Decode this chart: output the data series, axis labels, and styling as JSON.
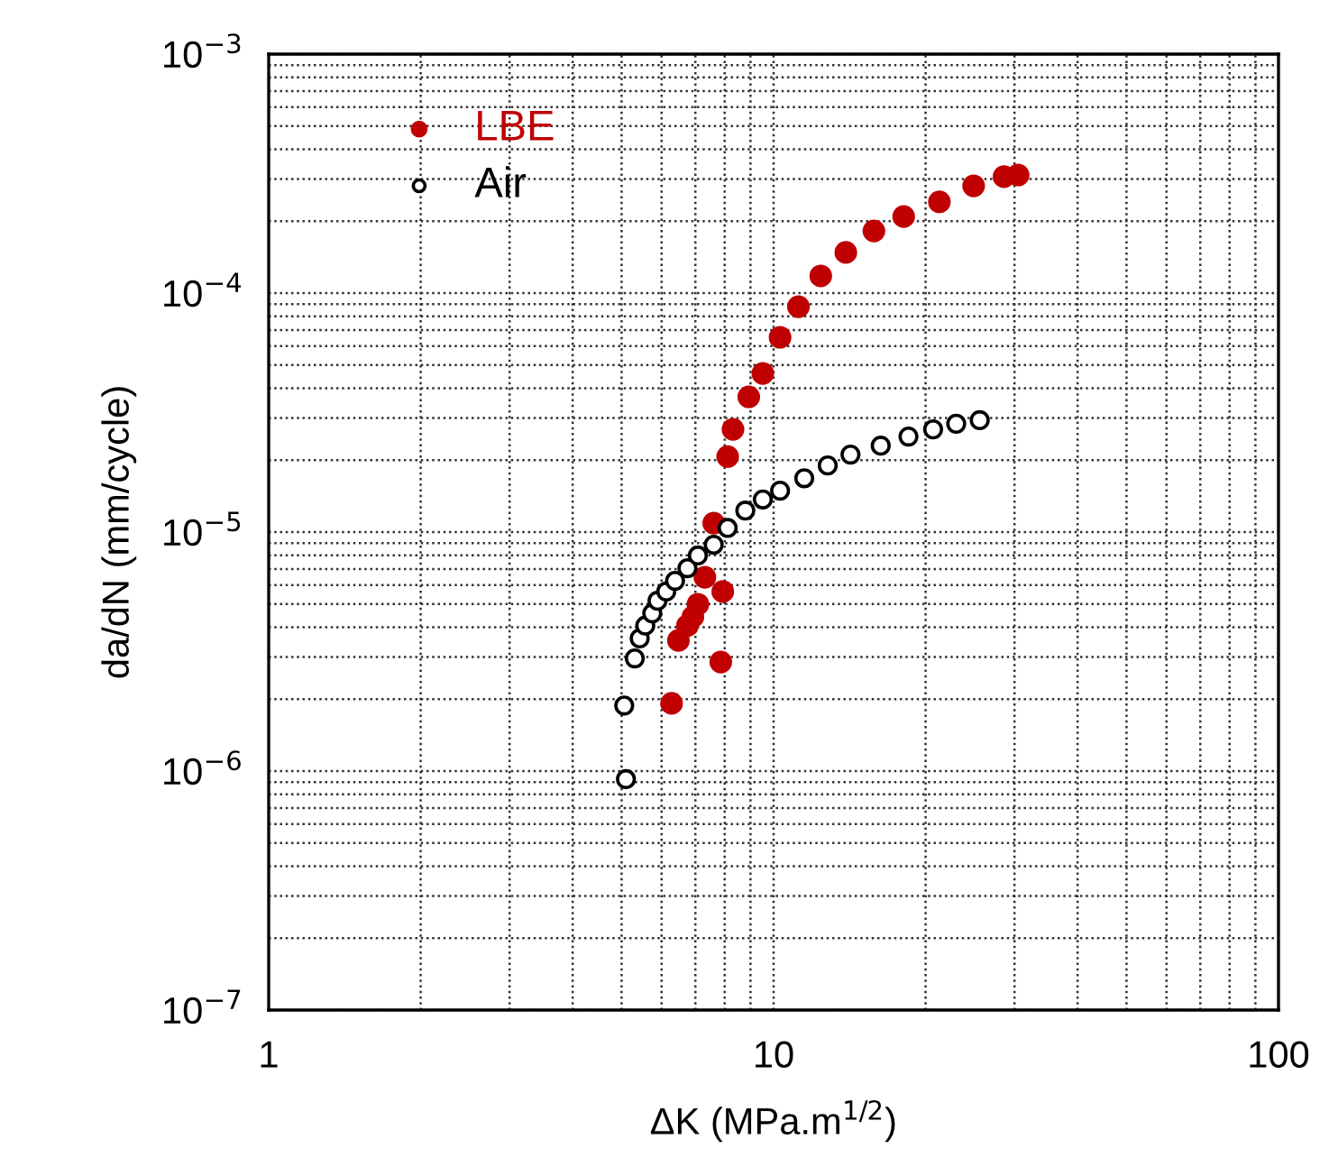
{
  "chart_data": {
    "type": "scatter",
    "xlabel": "ΔK (MPa.m$^{1/2}$)",
    "ylabel": "da/dN (mm/cycle)",
    "log": "xy",
    "xlim": [
      1,
      100
    ],
    "xticks": [
      1,
      10,
      100
    ],
    "ylim": [
      1e-07,
      0.001
    ],
    "yticks": [
      {
        "value": 1e-07,
        "label": "10$^{−7}$"
      },
      {
        "value": 1e-06,
        "label": "10$^{−6}$"
      },
      {
        "value": 1e-05,
        "label": "10$^{−5}$"
      },
      {
        "value": 0.0001,
        "label": "10$^{−4}$"
      },
      {
        "value": 0.001,
        "label": "10$^{−3}$"
      }
    ],
    "grid": true,
    "legend": "top left",
    "marker": "circle",
    "series": [
      {
        "name": "LBE",
        "color": "#c00000",
        "x": [
          6.28,
          7.86,
          6.48,
          6.75,
          6.92,
          7.08,
          7.31,
          7.93,
          7.61,
          8.11,
          8.31,
          8.93,
          9.52,
          10.3,
          11.2,
          12.4,
          13.9,
          15.8,
          18.1,
          21.3,
          24.9,
          28.6,
          30.5
        ],
        "values": [
          1.92e-06,
          2.86e-06,
          3.52e-06,
          4.06e-06,
          4.42e-06,
          4.99e-06,
          6.47e-06,
          5.64e-06,
          1.09e-05,
          2.07e-05,
          2.69e-05,
          3.68e-05,
          4.61e-05,
          6.53e-05,
          8.77e-05,
          0.000118,
          0.000148,
          0.000182,
          0.000209,
          0.000241,
          0.000281,
          0.000307,
          0.000312
        ]
      },
      {
        "name": "Air",
        "color": "#000000",
        "x": [
          5.1,
          5.06,
          5.31,
          5.43,
          5.57,
          5.75,
          5.89,
          6.13,
          6.38,
          6.75,
          7.08,
          7.61,
          8.11,
          8.79,
          9.52,
          10.3,
          11.5,
          12.8,
          14.2,
          16.3,
          18.5,
          20.7,
          23.0,
          25.6
        ],
        "values": [
          9.25e-07,
          1.88e-06,
          2.96e-06,
          3.59e-06,
          4.06e-06,
          4.57e-06,
          5.16e-06,
          5.64e-06,
          6.25e-06,
          7.06e-06,
          7.98e-06,
          8.85e-06,
          1.04e-05,
          1.23e-05,
          1.37e-05,
          1.49e-05,
          1.68e-05,
          1.9e-05,
          2.11e-05,
          2.3e-05,
          2.51e-05,
          2.69e-05,
          2.84e-05,
          2.94e-05
        ]
      }
    ]
  }
}
